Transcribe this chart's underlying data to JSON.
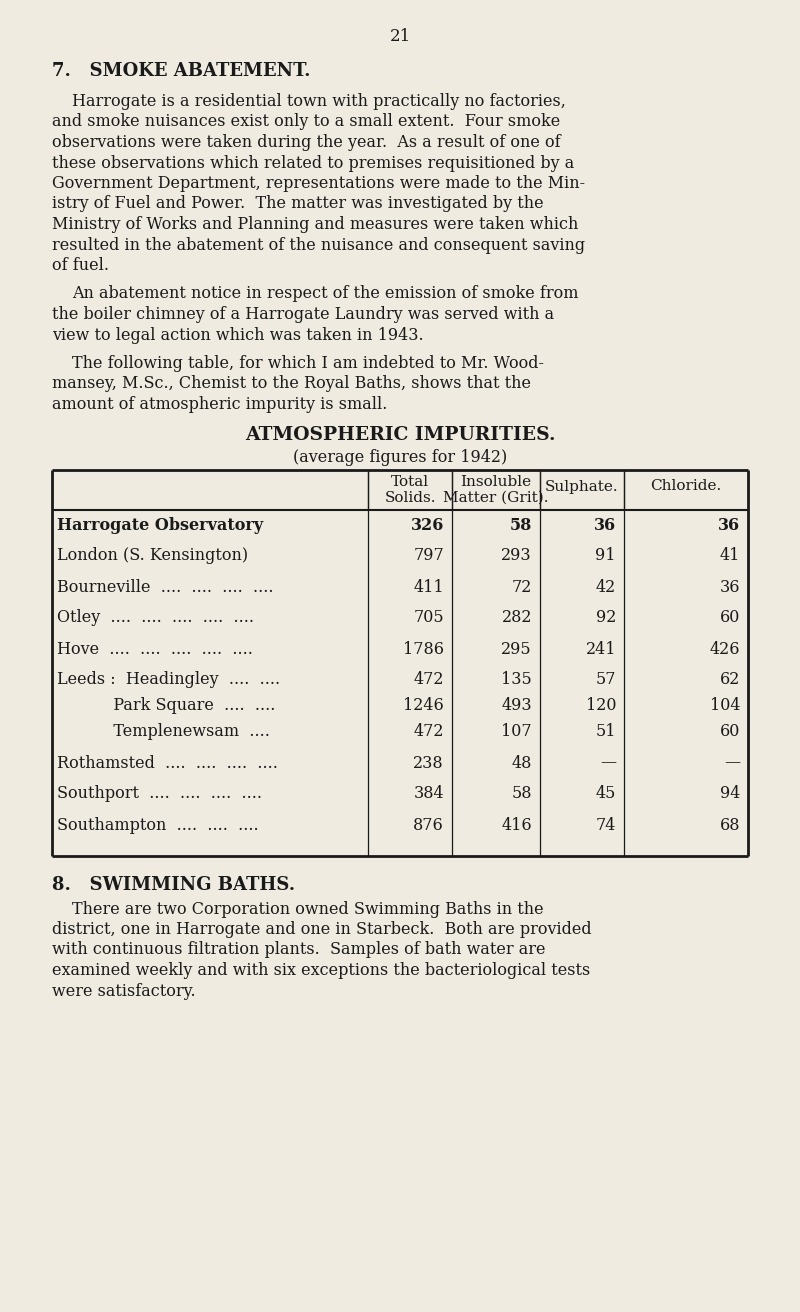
{
  "page_number": "21",
  "bg_color": "#f0ebe0",
  "text_color": "#1a1a1a",
  "para1_lines": [
    "Harrogate is a residential town with practically no factories,",
    "and smoke nuisances exist only to a small extent.  Four smoke",
    "observations were taken during the year.  As a result of one of",
    "these observations which related to premises requisitioned by a",
    "Government Department, representations were made to the Min-",
    "istry of Fuel and Power.  The matter was investigated by the",
    "Ministry of Works and Planning and measures were taken which",
    "resulted in the abatement of the nuisance and consequent saving",
    "of fuel."
  ],
  "para2_lines": [
    "An abatement notice in respect of the emission of smoke from",
    "the boiler chimney of a Harrogate Laundry was served with a",
    "view to legal action which was taken in 1943."
  ],
  "para3_lines": [
    "The following table, for which I am indebted to Mr. Wood-",
    "mansey, M.Sc., Chemist to the Royal Baths, shows that the",
    "amount of atmospheric impurity is small."
  ],
  "table_title": "ATMOSPHERIC IMPURITIES.",
  "table_subtitle": "(average figures for 1942)",
  "col_header1a": "Total",
  "col_header1b": "Solids.",
  "col_header2a": "Insoluble",
  "col_header2b": "Matter (Grit).",
  "col_header3": "Sulphate.",
  "col_header4": "Chloride.",
  "table_rows": [
    [
      "Harrogate Observatory",
      "....",
      "326",
      "58",
      "36",
      "36",
      true
    ],
    [
      "London (S. Kensington)",
      "....",
      "797",
      "293",
      "91",
      "41",
      false
    ],
    [
      "Bourneville  ....  ....  ....  ....",
      "",
      "411",
      "72",
      "42",
      "36",
      false
    ],
    [
      "Otley  ....  ....  ....  ....  ....",
      "",
      "705",
      "282",
      "92",
      "60",
      false
    ],
    [
      "Hove  ....  ....  ....  ....  ....",
      "",
      "1786",
      "295",
      "241",
      "426",
      false
    ],
    [
      "Leeds :  Headingley  ....  ....",
      "",
      "472",
      "135",
      "57",
      "62",
      false
    ],
    [
      "           Park Square  ....  ....",
      "",
      "1246",
      "493",
      "120",
      "104",
      false
    ],
    [
      "           Templenewsam  ....",
      "",
      "472",
      "107",
      "51",
      "60",
      false
    ],
    [
      "Rothamsted  ....  ....  ....  ....",
      "",
      "238",
      "48",
      "—",
      "—",
      false
    ],
    [
      "Southport  ....  ....  ....  ....",
      "",
      "384",
      "58",
      "45",
      "94",
      false
    ],
    [
      "Southampton  ....  ....  ....",
      "",
      "876",
      "416",
      "74",
      "68",
      false
    ]
  ],
  "section8_heading": "8.   SWIMMING BATHS.",
  "para8_lines": [
    "There are two Corporation owned Swimming Baths in the",
    "district, one in Harrogate and one in Starbeck.  Both are provided",
    "with continuous filtration plants.  Samples of bath water are",
    "examined weekly and with six exceptions the bacteriological tests",
    "were satisfactory."
  ]
}
